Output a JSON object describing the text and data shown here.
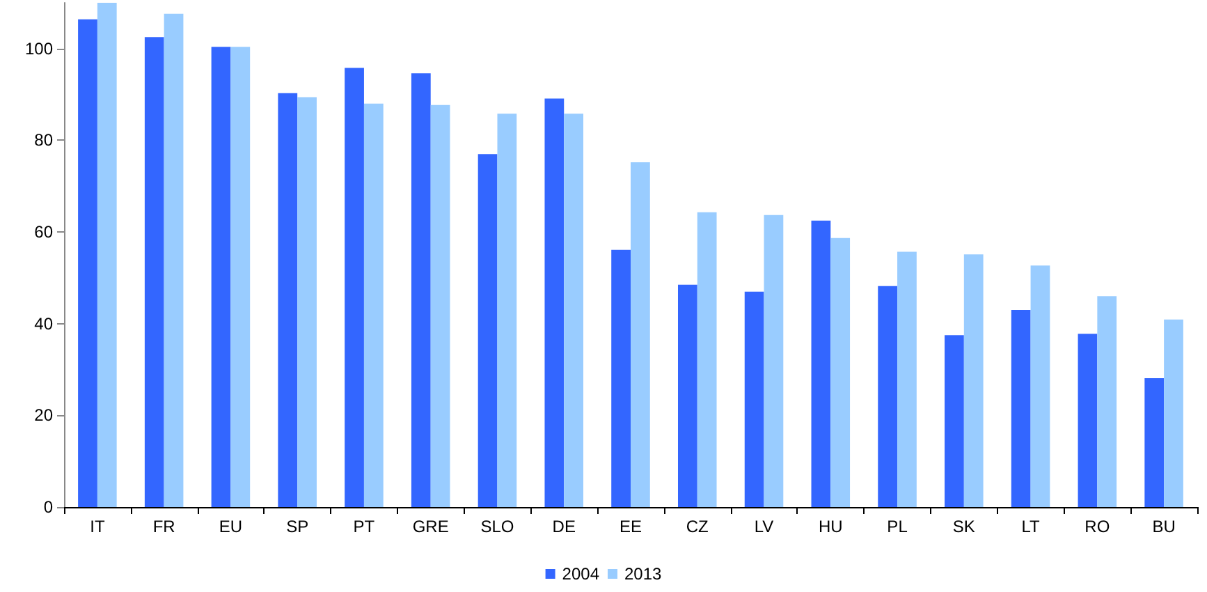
{
  "chart_data": {
    "type": "bar",
    "categories": [
      "IT",
      "FR",
      "EU",
      "SP",
      "PT",
      "GRE",
      "SLO",
      "DE",
      "EE",
      "CZ",
      "LV",
      "HU",
      "PL",
      "SK",
      "LT",
      "RO",
      "BU"
    ],
    "series": [
      {
        "name": "2004",
        "color": "#3366ff",
        "values": [
          106.4,
          102.5,
          100.4,
          90.3,
          95.8,
          94.6,
          77.0,
          89.1,
          56.1,
          48.5,
          47.0,
          62.5,
          48.2,
          37.5,
          43.0,
          37.8,
          28.1
        ]
      },
      {
        "name": "2013",
        "color": "#99ccff",
        "values": [
          110,
          107.6,
          100.4,
          89.4,
          88.0,
          87.7,
          85.8,
          85.8,
          75.2,
          64.3,
          63.7,
          58.7,
          55.7,
          55.1,
          52.7,
          46.0,
          40.9
        ]
      }
    ],
    "ylim": [
      0,
      110
    ],
    "yticks": [
      0,
      20,
      40,
      60,
      80,
      100
    ],
    "grid": false,
    "legend": "bottom"
  }
}
